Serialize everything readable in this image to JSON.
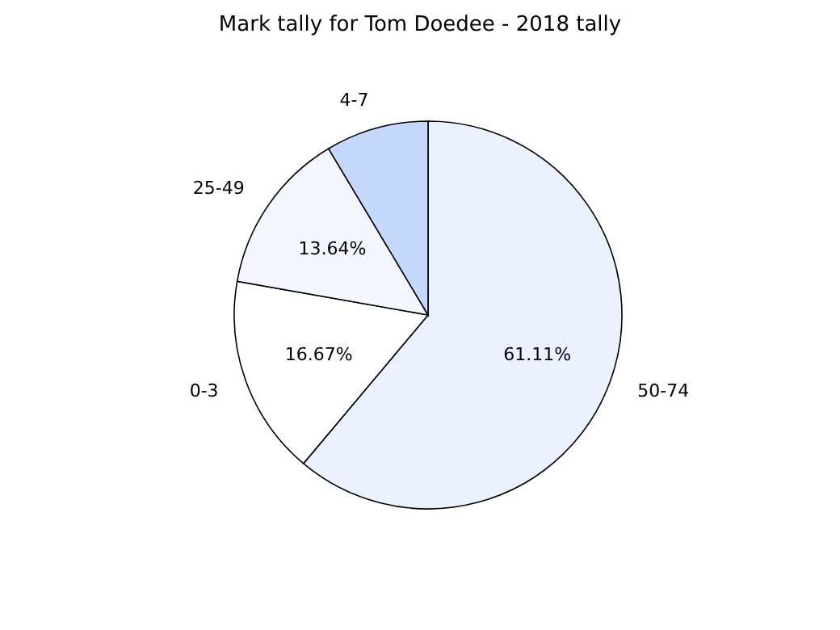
{
  "chart_data": {
    "type": "pie",
    "title": "Mark tally for Tom Doedee - 2018 tally",
    "categories": [
      "50-74",
      "0-3",
      "25-49",
      "4-7"
    ],
    "values": [
      61.11,
      16.67,
      13.64,
      8.58
    ],
    "value_labels": [
      "61.11%",
      "16.67%",
      "13.64%",
      null
    ],
    "colors": [
      "#ebf1fe",
      "#ffffff",
      "#f4f7ff",
      "#c5d9fd"
    ]
  }
}
